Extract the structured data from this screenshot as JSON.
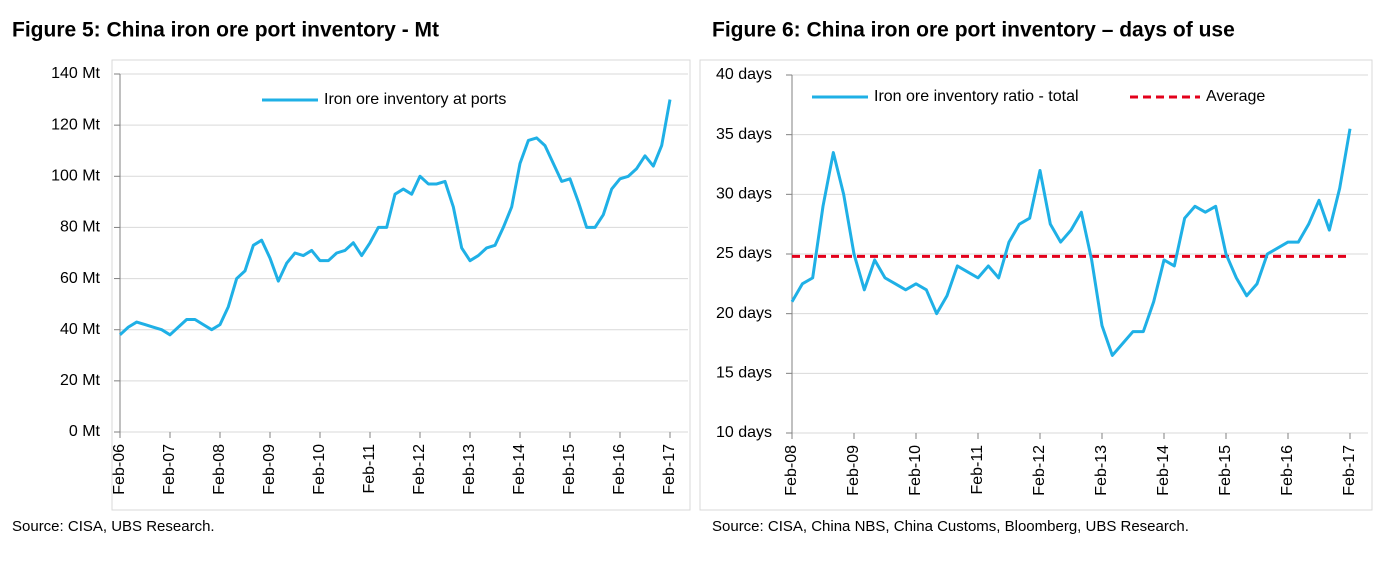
{
  "chart_data": [
    {
      "type": "line",
      "title": "Figure 5: China iron ore port inventory - Mt",
      "source": "Source:  CISA, UBS Research.",
      "x": [
        "Feb-06",
        "Apr-06",
        "Jun-06",
        "Aug-06",
        "Oct-06",
        "Dec-06",
        "Feb-07",
        "Apr-07",
        "Jun-07",
        "Aug-07",
        "Oct-07",
        "Dec-07",
        "Feb-08",
        "Apr-08",
        "Jun-08",
        "Aug-08",
        "Oct-08",
        "Dec-08",
        "Feb-09",
        "Apr-09",
        "Jun-09",
        "Aug-09",
        "Oct-09",
        "Dec-09",
        "Feb-10",
        "Apr-10",
        "Jun-10",
        "Aug-10",
        "Oct-10",
        "Dec-10",
        "Feb-11",
        "Apr-11",
        "Jun-11",
        "Aug-11",
        "Oct-11",
        "Dec-11",
        "Feb-12",
        "Apr-12",
        "Jun-12",
        "Aug-12",
        "Oct-12",
        "Dec-12",
        "Feb-13",
        "Apr-13",
        "Jun-13",
        "Aug-13",
        "Oct-13",
        "Dec-13",
        "Feb-14",
        "Apr-14",
        "Jun-14",
        "Aug-14",
        "Oct-14",
        "Dec-14",
        "Feb-15",
        "Apr-15",
        "Jun-15",
        "Aug-15",
        "Oct-15",
        "Dec-15",
        "Feb-16",
        "Apr-16",
        "Jun-16",
        "Aug-16",
        "Oct-16",
        "Dec-16",
        "Feb-17"
      ],
      "series": [
        {
          "name": "Iron ore inventory at ports",
          "color": "#1fb0e6",
          "values": [
            38,
            41,
            43,
            42,
            41,
            40,
            38,
            41,
            44,
            44,
            42,
            40,
            42,
            49,
            60,
            63,
            73,
            75,
            68,
            59,
            66,
            70,
            69,
            71,
            67,
            67,
            70,
            71,
            74,
            69,
            74,
            80,
            80,
            93,
            95,
            93,
            100,
            97,
            97,
            98,
            88,
            72,
            67,
            69,
            72,
            73,
            80,
            88,
            105,
            114,
            115,
            112,
            105,
            98,
            99,
            90,
            80,
            80,
            85,
            95,
            99,
            100,
            103,
            108,
            104,
            112,
            130
          ]
        }
      ],
      "xticks": [
        "Feb-06",
        "Feb-07",
        "Feb-08",
        "Feb-09",
        "Feb-10",
        "Feb-11",
        "Feb-12",
        "Feb-13",
        "Feb-14",
        "Feb-15",
        "Feb-16",
        "Feb-17"
      ],
      "ylim": [
        0,
        140
      ],
      "yticks": [
        {
          "value": 0,
          "label": "0 Mt"
        },
        {
          "value": 20,
          "label": "20 Mt"
        },
        {
          "value": 40,
          "label": "40 Mt"
        },
        {
          "value": 60,
          "label": "60 Mt"
        },
        {
          "value": 80,
          "label": "80 Mt"
        },
        {
          "value": 100,
          "label": "100 Mt"
        },
        {
          "value": 120,
          "label": "120 Mt"
        },
        {
          "value": 140,
          "label": "140 Mt"
        }
      ],
      "grid": true
    },
    {
      "type": "line",
      "title": "Figure 6: China iron ore port inventory – days of use",
      "source": "Source:  CISA, China NBS, China Customs, Bloomberg, UBS Research.",
      "x": [
        "Feb-08",
        "Apr-08",
        "Jun-08",
        "Aug-08",
        "Oct-08",
        "Dec-08",
        "Feb-09",
        "Apr-09",
        "Jun-09",
        "Aug-09",
        "Oct-09",
        "Dec-09",
        "Feb-10",
        "Apr-10",
        "Jun-10",
        "Aug-10",
        "Oct-10",
        "Dec-10",
        "Feb-11",
        "Apr-11",
        "Jun-11",
        "Aug-11",
        "Oct-11",
        "Dec-11",
        "Feb-12",
        "Apr-12",
        "Jun-12",
        "Aug-12",
        "Oct-12",
        "Dec-12",
        "Feb-13",
        "Apr-13",
        "Jun-13",
        "Aug-13",
        "Oct-13",
        "Dec-13",
        "Feb-14",
        "Apr-14",
        "Jun-14",
        "Aug-14",
        "Oct-14",
        "Dec-14",
        "Feb-15",
        "Apr-15",
        "Jun-15",
        "Aug-15",
        "Oct-15",
        "Dec-15",
        "Feb-16",
        "Apr-16",
        "Jun-16",
        "Aug-16",
        "Oct-16",
        "Dec-16",
        "Feb-17"
      ],
      "series": [
        {
          "name": "Iron ore inventory ratio - total",
          "color": "#1fb0e6",
          "values": [
            21,
            22.5,
            23,
            29,
            33.5,
            30,
            25,
            22,
            24.5,
            23,
            22.5,
            22,
            22.5,
            22,
            20,
            21.5,
            24,
            23.5,
            23,
            24,
            23,
            26,
            27.5,
            28,
            32,
            27.5,
            26,
            27,
            28.5,
            24.5,
            19,
            16.5,
            17.5,
            18.5,
            18.5,
            21,
            24.5,
            24,
            28,
            29,
            28.5,
            29,
            25,
            23,
            21.5,
            22.5,
            25,
            25.5,
            26,
            26,
            27.5,
            29.5,
            27,
            30.5,
            35.5
          ]
        }
      ],
      "average": {
        "name": "Average",
        "value": 24.8,
        "color": "#e3001b"
      },
      "xticks": [
        "Feb-08",
        "Feb-09",
        "Feb-10",
        "Feb-11",
        "Feb-12",
        "Feb-13",
        "Feb-14",
        "Feb-15",
        "Feb-16",
        "Feb-17"
      ],
      "ylim": [
        10,
        40
      ],
      "yticks": [
        {
          "value": 10,
          "label": "10 days"
        },
        {
          "value": 15,
          "label": "15 days"
        },
        {
          "value": 20,
          "label": "20 days"
        },
        {
          "value": 25,
          "label": "25 days"
        },
        {
          "value": 30,
          "label": "30 days"
        },
        {
          "value": 35,
          "label": "35 days"
        },
        {
          "value": 40,
          "label": "40 days"
        }
      ],
      "grid": true
    }
  ]
}
